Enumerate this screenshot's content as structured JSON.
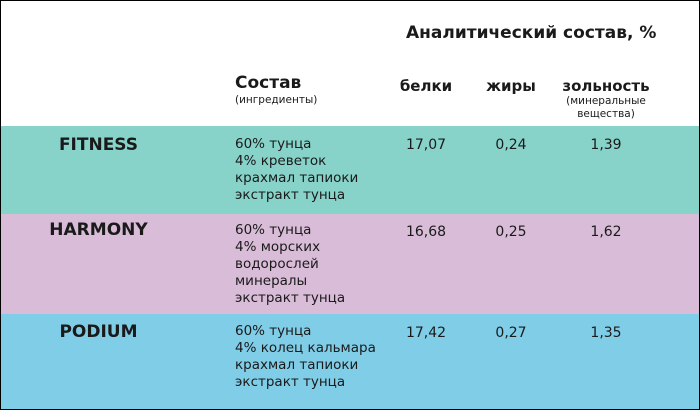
{
  "header": {
    "super_title": "Аналитический состав, %",
    "composition_title": "Состав",
    "composition_sub": "(ингредиенты)",
    "col_protein": "белки",
    "col_fat": "жиры",
    "col_ash": "зольность",
    "col_ash_sub": [
      "(минеральные",
      "вещества)"
    ]
  },
  "colors": {
    "fitness": "#87d3c9",
    "harmony": "#d9bcd8",
    "podium": "#80cde8"
  },
  "rows": [
    {
      "name": "FITNESS",
      "ingredients": [
        "60% тунца",
        "4% креветок",
        "крахмал тапиоки",
        "экстракт тунца"
      ],
      "protein": "17,07",
      "fat": "0,24",
      "ash": "1,39"
    },
    {
      "name": "HARMONY",
      "ingredients": [
        "60% тунца",
        "4% морских",
        "водорослей",
        "минералы",
        "экстракт тунца"
      ],
      "protein": "16,68",
      "fat": "0,25",
      "ash": "1,62"
    },
    {
      "name": "PODIUM",
      "ingredients": [
        "60% тунца",
        "4% колец кальмара",
        "крахмал тапиоки",
        "экстракт тунца"
      ],
      "protein": "17,42",
      "fat": "0,27",
      "ash": "1,35"
    }
  ]
}
